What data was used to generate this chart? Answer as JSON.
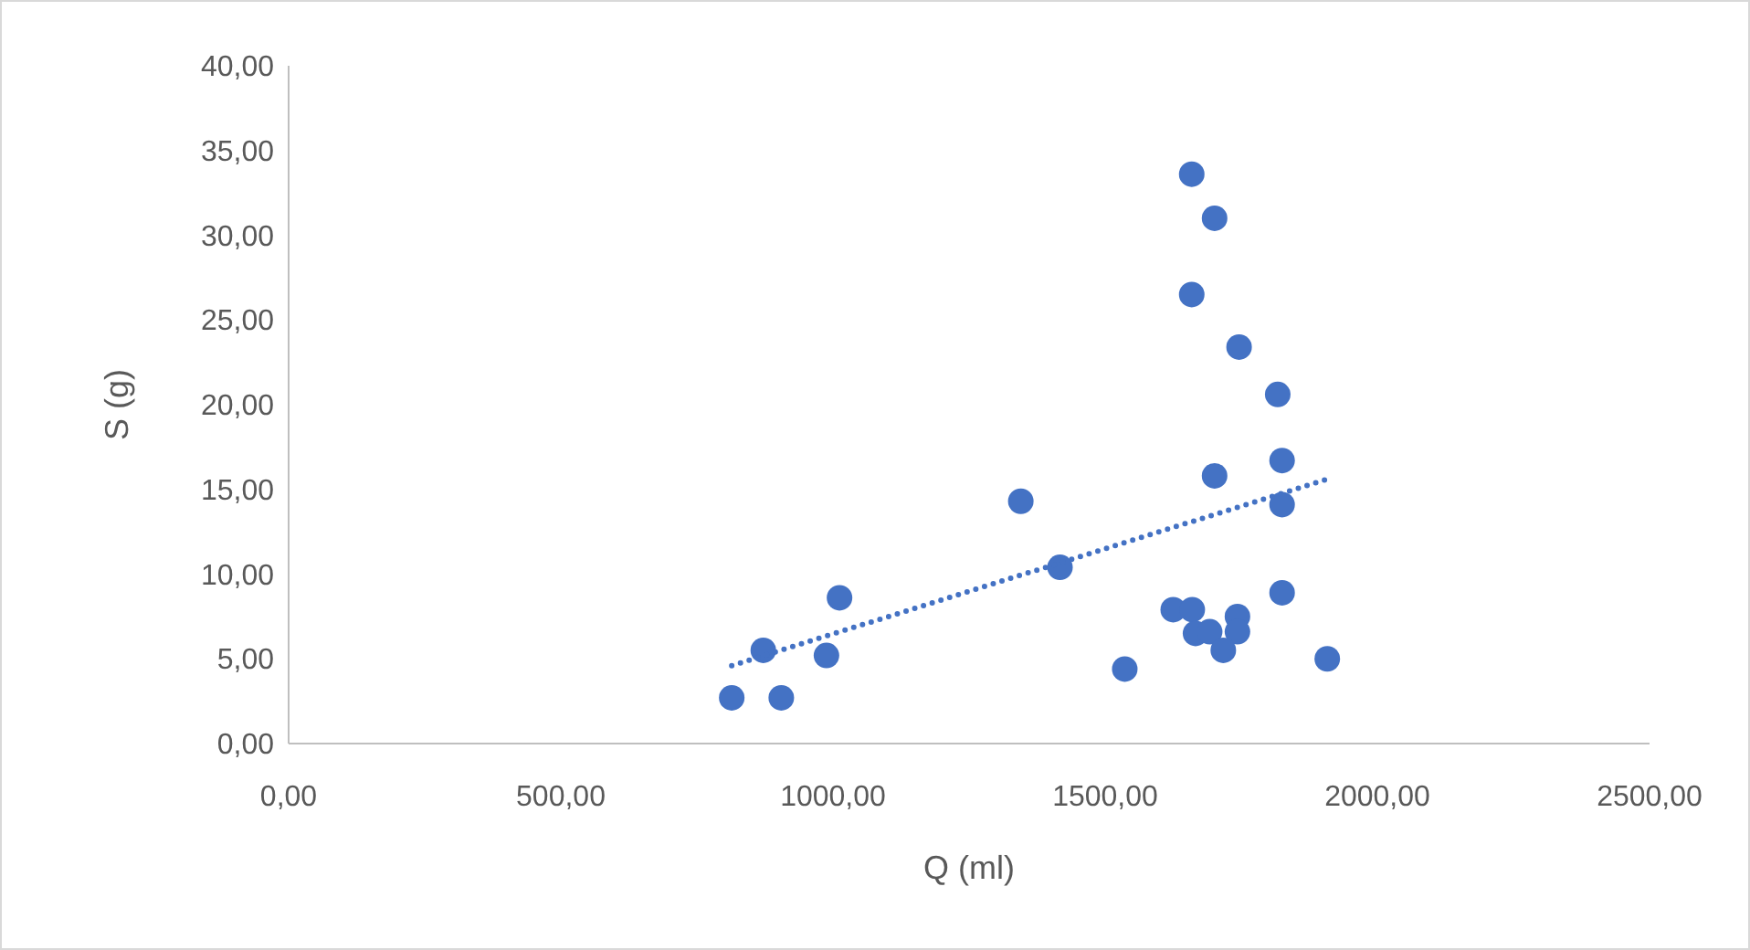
{
  "chart_data": {
    "type": "scatter",
    "xlabel": "Q (ml)",
    "ylabel": "S (g)",
    "marker": "circle",
    "grid": false,
    "xlim": [
      0,
      2500
    ],
    "ylim": [
      0,
      40
    ],
    "xticks": [
      {
        "value": 0,
        "label": "0,00"
      },
      {
        "value": 500,
        "label": "500,00"
      },
      {
        "value": 1000,
        "label": "1000,00"
      },
      {
        "value": 1500,
        "label": "1500,00"
      },
      {
        "value": 2000,
        "label": "2000,00"
      },
      {
        "value": 2500,
        "label": "2500,00"
      }
    ],
    "yticks": [
      {
        "value": 0,
        "label": "0,00"
      },
      {
        "value": 5,
        "label": "5,00"
      },
      {
        "value": 10,
        "label": "10,00"
      },
      {
        "value": 15,
        "label": "15,00"
      },
      {
        "value": 20,
        "label": "20,00"
      },
      {
        "value": 25,
        "label": "25,00"
      },
      {
        "value": 30,
        "label": "30,00"
      },
      {
        "value": 35,
        "label": "35,00"
      },
      {
        "value": 40,
        "label": "40,00"
      }
    ],
    "series": [
      {
        "color": "#4472c4",
        "x": [
          1659,
          1701,
          1659,
          1746,
          1817,
          1825,
          1701,
          1825,
          1345,
          1417,
          1012,
          1825,
          1625,
          1660,
          1743,
          1666,
          1692,
          1743,
          1717,
          872,
          988,
          1536,
          1908,
          814,
          905
        ],
        "values": [
          33.6,
          31.0,
          26.5,
          23.4,
          20.6,
          16.7,
          15.8,
          14.1,
          14.3,
          10.4,
          8.6,
          8.9,
          7.9,
          7.9,
          7.5,
          6.5,
          6.6,
          6.6,
          5.5,
          5.5,
          5.2,
          4.4,
          5.0,
          2.7,
          2.7
        ]
      },
      {
        "type": "line",
        "color": "#4472c4",
        "line_style": "dotted",
        "marker": "none",
        "x": [
          814,
          1908
        ],
        "values": [
          4.6,
          15.6
        ]
      }
    ]
  }
}
